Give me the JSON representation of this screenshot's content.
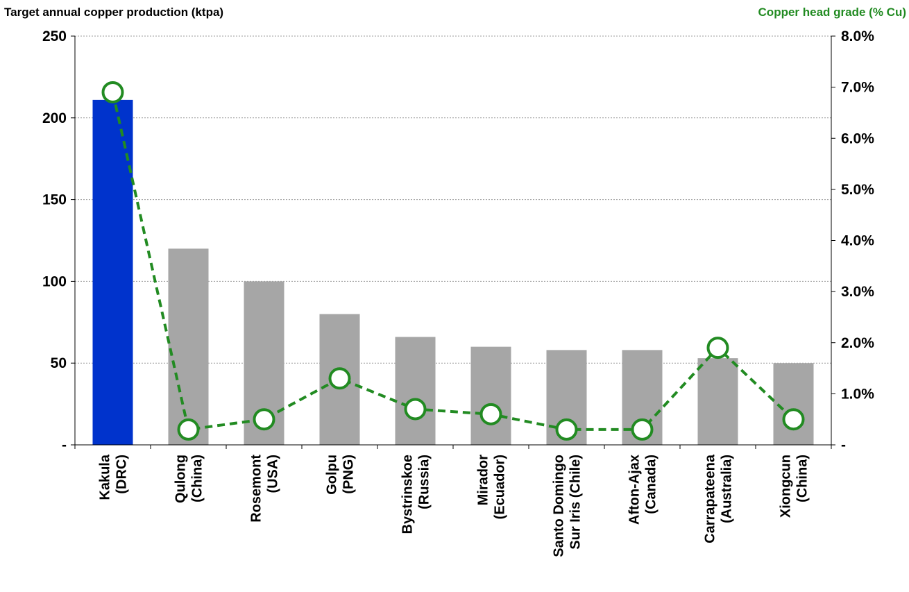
{
  "chart_data": {
    "type": "bar",
    "title_left": "Target annual copper production (ktpa)",
    "title_right": "Copper head grade (% Cu)",
    "categories": [
      [
        "Kakula",
        "(DRC)"
      ],
      [
        "Qulong",
        "(China)"
      ],
      [
        "Rosemont",
        "(USA)"
      ],
      [
        "Golpu",
        "(PNG)"
      ],
      [
        "Bystrinskoe",
        "(Russia)"
      ],
      [
        "Mirador",
        "(Ecuador)"
      ],
      [
        "Santo Domingo",
        "Sur Iris (Chile)"
      ],
      [
        "Afton-Ajax",
        "(Canada)"
      ],
      [
        "Carrapateena",
        "(Australia)"
      ],
      [
        "Xiongcun",
        "(China)"
      ]
    ],
    "series": [
      {
        "type": "bar",
        "values": [
          211,
          120,
          100,
          80,
          66,
          60,
          58,
          58,
          53,
          50
        ],
        "colors": [
          "#0033CC",
          "#A6A6A6",
          "#A6A6A6",
          "#A6A6A6",
          "#A6A6A6",
          "#A6A6A6",
          "#A6A6A6",
          "#A6A6A6",
          "#A6A6A6",
          "#A6A6A6"
        ]
      },
      {
        "type": "line",
        "axis": "right",
        "values": [
          6.9,
          0.3,
          0.5,
          1.3,
          0.7,
          0.6,
          0.3,
          0.3,
          1.9,
          0.5
        ],
        "color": "#228B22"
      }
    ],
    "y_left": {
      "min": 0,
      "max": 250,
      "ticks": [
        0,
        50,
        100,
        150,
        200,
        250
      ],
      "tick_labels": [
        "-",
        "50",
        "100",
        "150",
        "200",
        "250"
      ]
    },
    "y_right": {
      "min": 0,
      "max": 8,
      "ticks": [
        0,
        1,
        2,
        3,
        4,
        5,
        6,
        7,
        8
      ],
      "tick_labels": [
        "-",
        "1.0%",
        "2.0%",
        "3.0%",
        "4.0%",
        "5.0%",
        "6.0%",
        "7.0%",
        "8.0%"
      ]
    },
    "grid": true,
    "legend": "none"
  }
}
